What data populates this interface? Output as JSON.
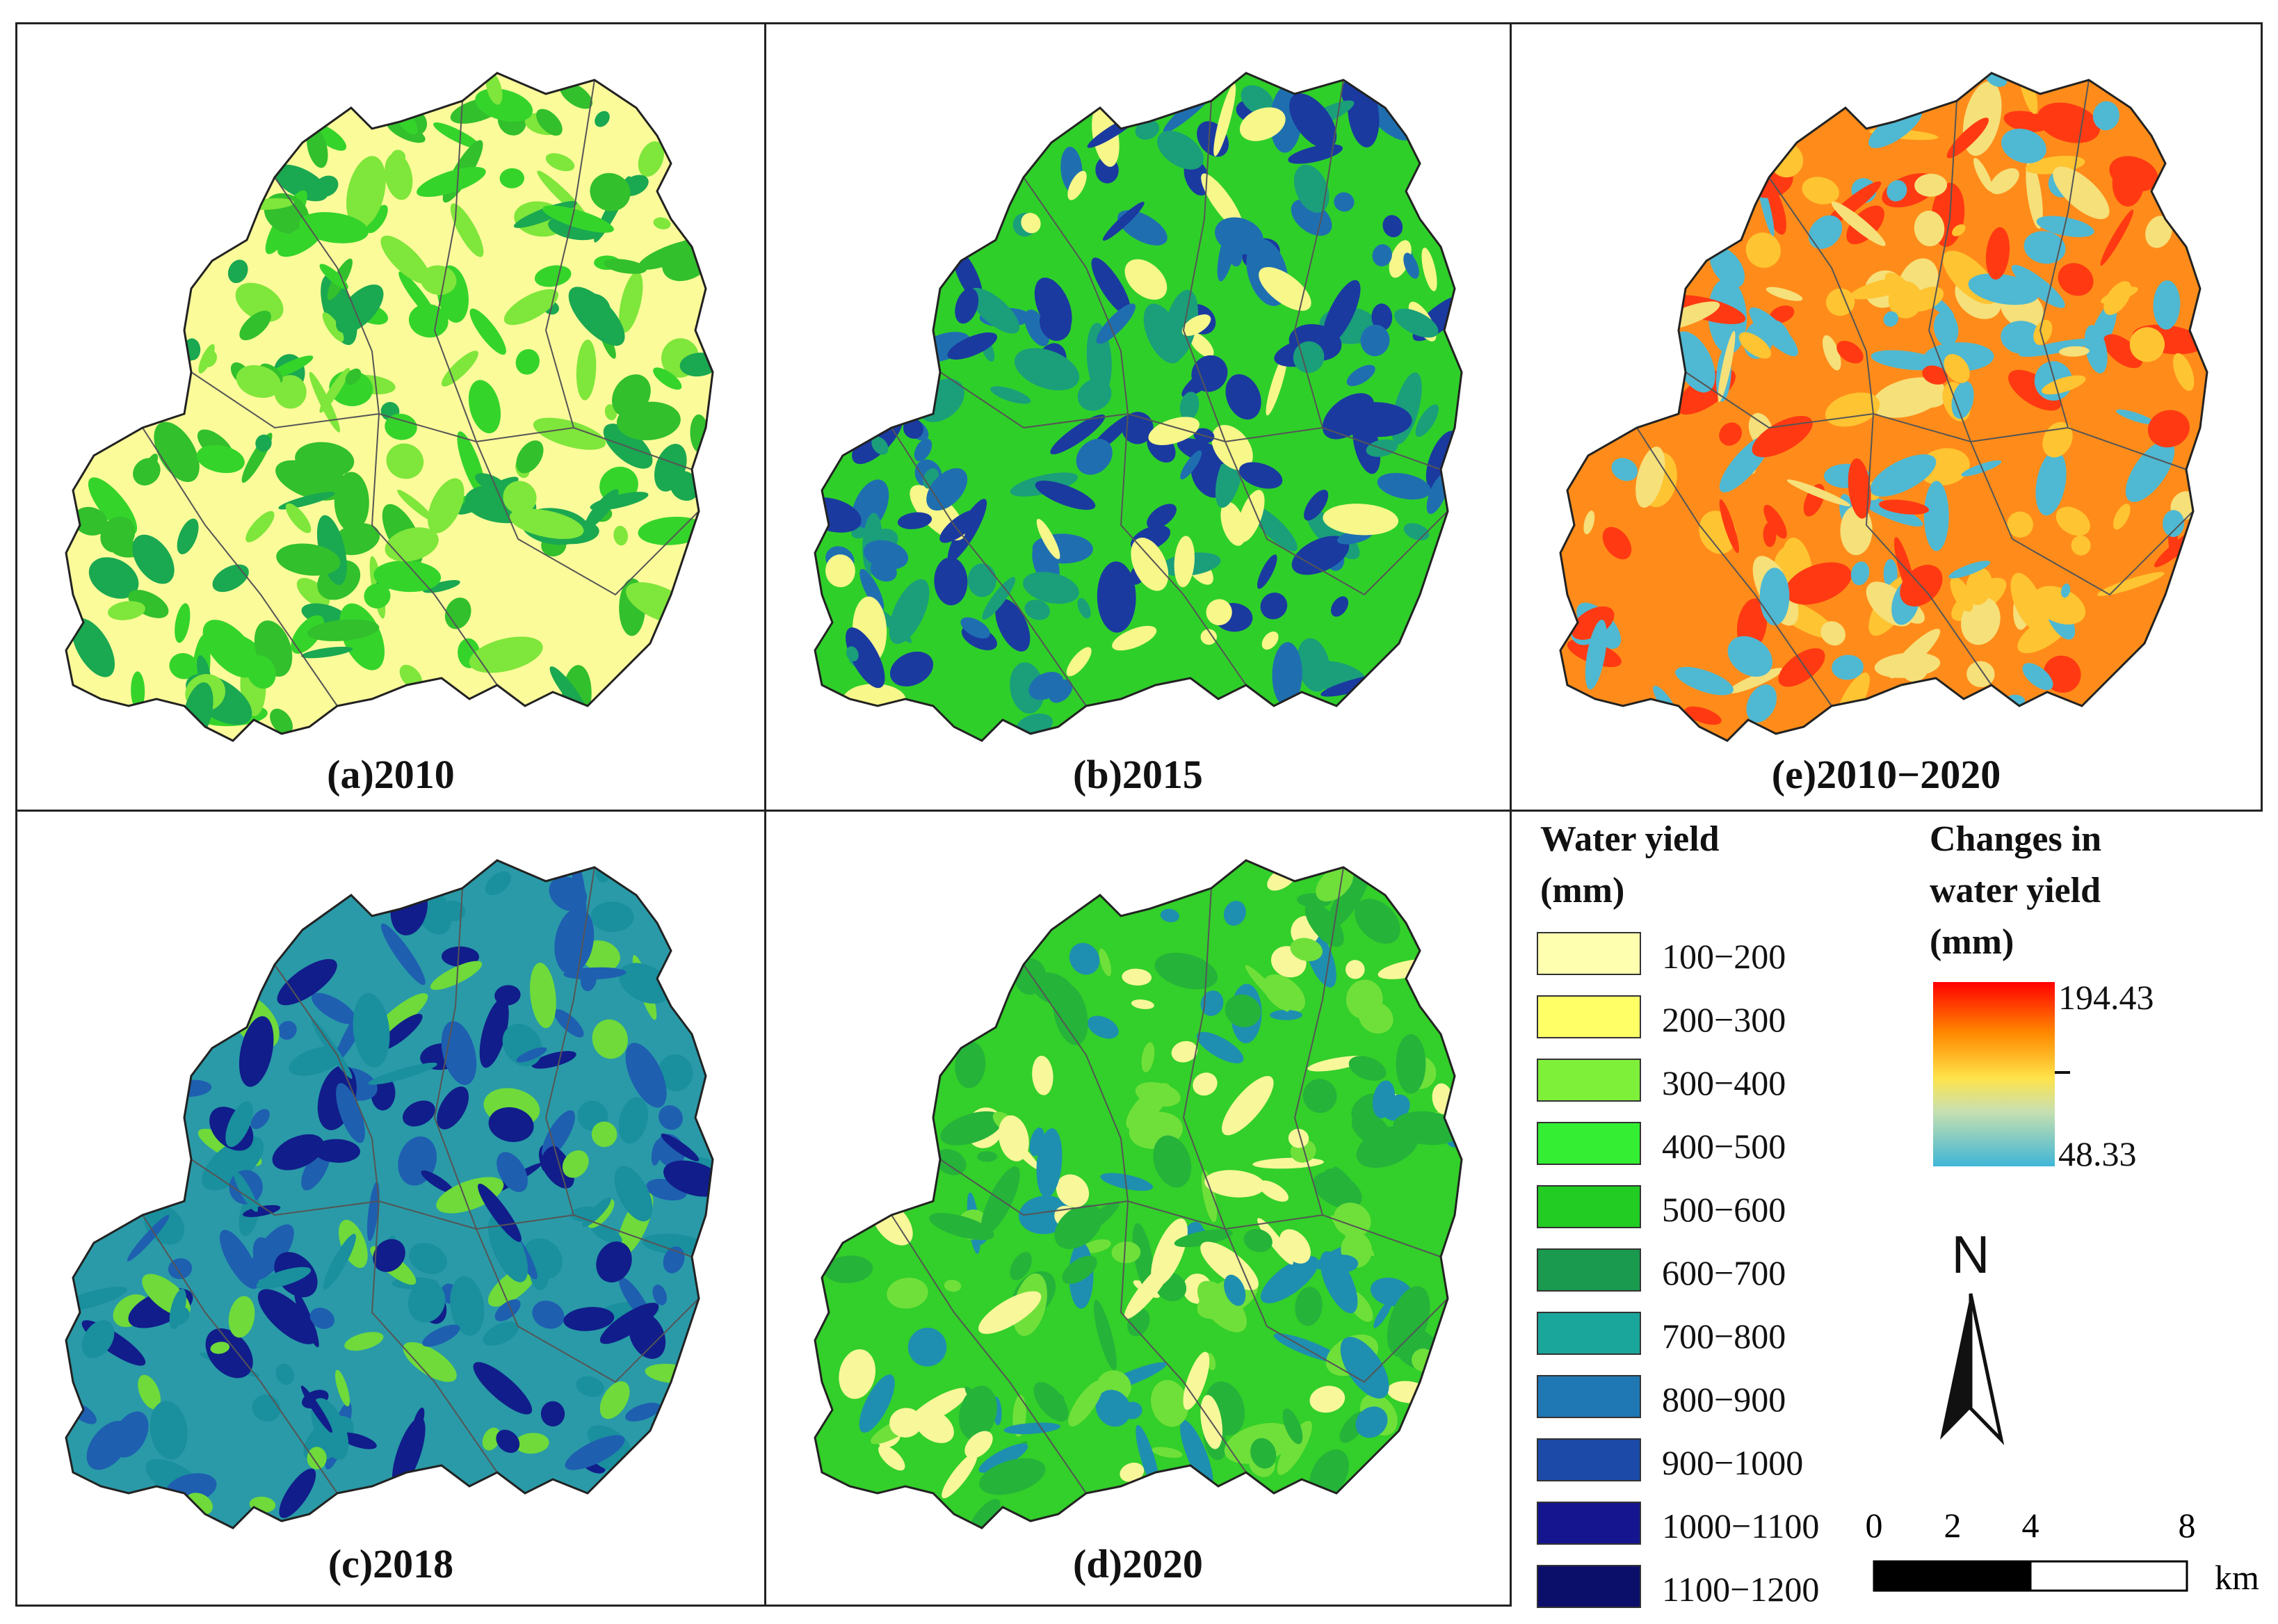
{
  "panels": [
    {
      "id": "a",
      "label": "(a)2010",
      "palette": [
        "#fbfb9a",
        "#7fe63b",
        "#35d42b",
        "#1aa851",
        "#32c02d"
      ]
    },
    {
      "id": "b",
      "label": "(b)2015",
      "palette": [
        "#2fcf2a",
        "#1a9f7a",
        "#1f6fb0",
        "#1a3aa0",
        "#f7f78a"
      ]
    },
    {
      "id": "e",
      "label": "(e)2010−2020",
      "palette": [
        "#ff8c1a",
        "#ffc432",
        "#ff3a12",
        "#f5e07a",
        "#4fb8d2"
      ]
    },
    {
      "id": "c",
      "label": "(c)2018",
      "palette": [
        "#2a9aa8",
        "#1e5fb0",
        "#111d8a",
        "#6fda3a",
        "#1a8f9e"
      ]
    },
    {
      "id": "d",
      "label": "(d)2020",
      "palette": [
        "#33cf2a",
        "#25b33a",
        "#1e8fb0",
        "#f8f79a",
        "#6fe03a"
      ]
    }
  ],
  "legend_water_yield": {
    "title_line1": "Water yield",
    "title_line2": "(mm)",
    "classes": [
      {
        "label": "100−200",
        "color": "#ffffb0"
      },
      {
        "label": "200−300",
        "color": "#ffff66"
      },
      {
        "label": "300−400",
        "color": "#7ff03a"
      },
      {
        "label": "400−500",
        "color": "#33ee33"
      },
      {
        "label": "500−600",
        "color": "#22cc22"
      },
      {
        "label": "600−700",
        "color": "#1a9a4e"
      },
      {
        "label": "700−800",
        "color": "#1aa69a"
      },
      {
        "label": "800−900",
        "color": "#1f78b4"
      },
      {
        "label": "900−1000",
        "color": "#1c4aa8"
      },
      {
        "label": "1000−1100",
        "color": "#14158f"
      },
      {
        "label": "1100−1200",
        "color": "#0c0f6a"
      }
    ]
  },
  "legend_change": {
    "title_line1": "Changes in",
    "title_line2": "water yield",
    "title_line3": "(mm)",
    "max_label": "194.43",
    "min_label": "48.33"
  },
  "north_arrow": {
    "label": "N"
  },
  "scale_bar": {
    "ticks": [
      "0",
      "2",
      "4",
      "8"
    ],
    "unit": "km"
  }
}
